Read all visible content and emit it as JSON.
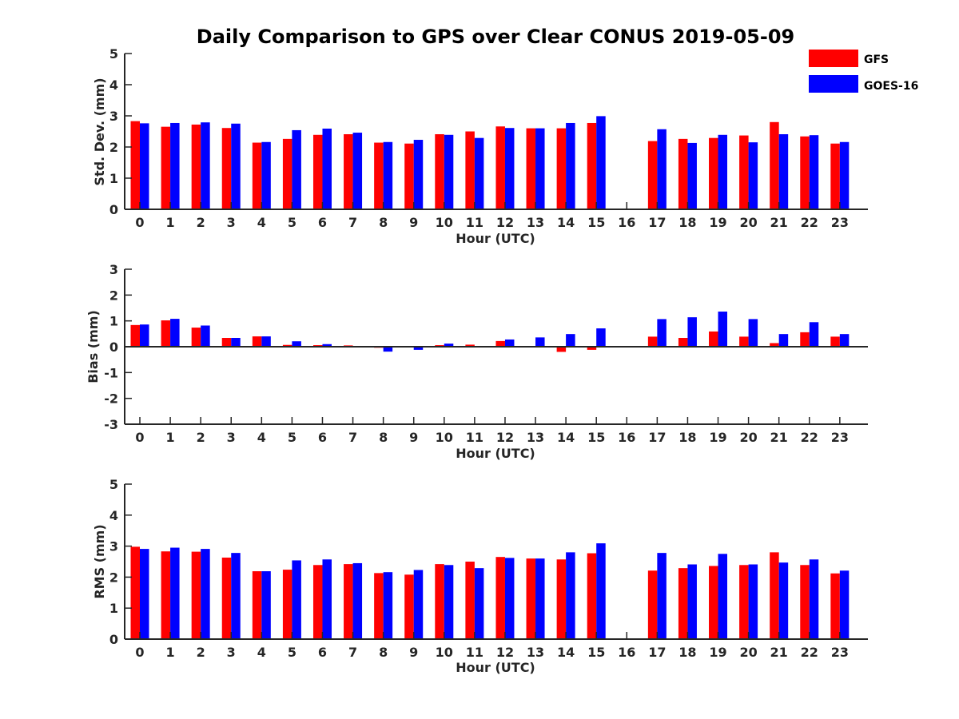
{
  "chart_data": {
    "title": "Daily Comparison to GPS over Clear CONUS 2019-05-09",
    "legend": {
      "placement": "top-right",
      "entries": [
        {
          "name": "GFS",
          "color": "#ff0000"
        },
        {
          "name": "GOES-16",
          "color": "#0000ff"
        }
      ]
    },
    "series_colors": [
      "#ff0000",
      "#0000ff"
    ],
    "charts": [
      {
        "id": "std",
        "type": "bar",
        "ylabel": "Std. Dev. (mm)",
        "xlabel": "Hour (UTC)",
        "ylim": [
          0,
          5
        ],
        "yticks": [
          0,
          1,
          2,
          3,
          4,
          5
        ],
        "categories": [
          "0",
          "1",
          "2",
          "3",
          "4",
          "5",
          "6",
          "7",
          "8",
          "9",
          "10",
          "11",
          "12",
          "13",
          "14",
          "15",
          "16",
          "17",
          "18",
          "19",
          "20",
          "21",
          "22",
          "23"
        ],
        "series": [
          {
            "name": "GFS",
            "values": [
              2.83,
              2.65,
              2.72,
              2.61,
              2.14,
              2.26,
              2.39,
              2.41,
              2.14,
              2.11,
              2.41,
              2.5,
              2.66,
              2.6,
              2.6,
              2.77,
              null,
              2.19,
              2.26,
              2.29,
              2.37,
              2.8,
              2.34,
              2.11
            ]
          },
          {
            "name": "GOES-16",
            "values": [
              2.76,
              2.77,
              2.79,
              2.75,
              2.16,
              2.54,
              2.59,
              2.46,
              2.16,
              2.23,
              2.39,
              2.29,
              2.61,
              2.6,
              2.77,
              2.99,
              null,
              2.57,
              2.13,
              2.39,
              2.15,
              2.41,
              2.38,
              2.16
            ]
          }
        ]
      },
      {
        "id": "bias",
        "type": "bar",
        "ylabel": "Bias (mm)",
        "xlabel": "Hour (UTC)",
        "ylim": [
          -3,
          3
        ],
        "yticks": [
          -3,
          -2,
          -1,
          0,
          1,
          2,
          3
        ],
        "categories": [
          "0",
          "1",
          "2",
          "3",
          "4",
          "5",
          "6",
          "7",
          "8",
          "9",
          "10",
          "11",
          "12",
          "13",
          "14",
          "15",
          "16",
          "17",
          "18",
          "19",
          "20",
          "21",
          "22",
          "23"
        ],
        "series": [
          {
            "name": "GFS",
            "values": [
              0.84,
              1.02,
              0.74,
              0.34,
              0.4,
              0.07,
              0.06,
              0.05,
              -0.04,
              0.02,
              0.06,
              0.08,
              0.22,
              0.0,
              -0.2,
              -0.12,
              null,
              0.39,
              0.34,
              0.59,
              0.39,
              0.14,
              0.56,
              0.39
            ]
          },
          {
            "name": "GOES-16",
            "values": [
              0.86,
              1.08,
              0.82,
              0.34,
              0.4,
              0.21,
              0.1,
              0.0,
              -0.19,
              -0.12,
              0.12,
              0.02,
              0.28,
              0.36,
              0.49,
              0.71,
              null,
              1.07,
              1.14,
              1.36,
              1.07,
              0.49,
              0.95,
              0.49
            ]
          }
        ]
      },
      {
        "id": "rms",
        "type": "bar",
        "ylabel": "RMS (mm)",
        "xlabel": "Hour (UTC)",
        "ylim": [
          0,
          5
        ],
        "yticks": [
          0,
          1,
          2,
          3,
          4,
          5
        ],
        "categories": [
          "0",
          "1",
          "2",
          "3",
          "4",
          "5",
          "6",
          "7",
          "8",
          "9",
          "10",
          "11",
          "12",
          "13",
          "14",
          "15",
          "16",
          "17",
          "18",
          "19",
          "20",
          "21",
          "22",
          "23"
        ],
        "series": [
          {
            "name": "GFS",
            "values": [
              2.98,
              2.83,
              2.82,
              2.63,
              2.19,
              2.24,
              2.39,
              2.42,
              2.13,
              2.08,
              2.42,
              2.5,
              2.65,
              2.6,
              2.57,
              2.77,
              null,
              2.21,
              2.29,
              2.36,
              2.39,
              2.8,
              2.39,
              2.12
            ]
          },
          {
            "name": "GOES-16",
            "values": [
              2.91,
              2.95,
              2.91,
              2.78,
              2.19,
              2.54,
              2.57,
              2.45,
              2.16,
              2.23,
              2.39,
              2.29,
              2.62,
              2.6,
              2.8,
              3.09,
              null,
              2.78,
              2.41,
              2.75,
              2.41,
              2.47,
              2.57,
              2.21
            ]
          }
        ]
      }
    ]
  }
}
